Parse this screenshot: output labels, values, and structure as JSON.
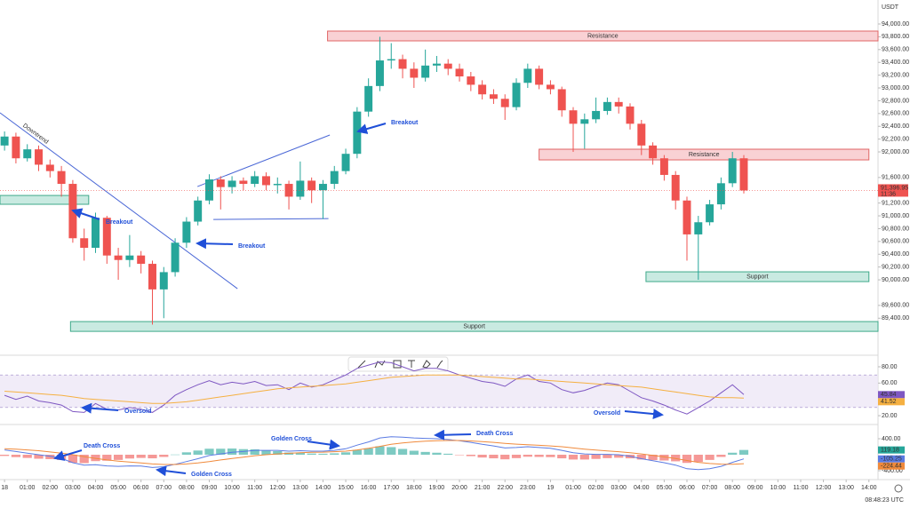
{
  "chart_data": {
    "type": "candlestick",
    "currency": "USDT",
    "clock": "08:48:23 UTC",
    "countdown": "11:36",
    "last_close": {
      "value": 91396.95,
      "label": "91,396.95"
    },
    "up_color": "#26a69a",
    "down_color": "#ef5350",
    "x": [
      0,
      0.5,
      1,
      1.5,
      2,
      2.5,
      3,
      3.5,
      4,
      4.5,
      5,
      5.5,
      6,
      6.5,
      7,
      7.5,
      8,
      8.5,
      9,
      9.5,
      10,
      10.5,
      11,
      11.5,
      12,
      12.5,
      13,
      13.5,
      14,
      14.5,
      15,
      15.5,
      16,
      16.5,
      17,
      17.5,
      18,
      18.5,
      19,
      19.5,
      20,
      20.5,
      21,
      21.5,
      22,
      22.5,
      23,
      23.5,
      24,
      24.5,
      25,
      25.5,
      26,
      26.5,
      27,
      27.5,
      28,
      28.5,
      29,
      29.5,
      30,
      30.5,
      31,
      31.5,
      32,
      32.5
    ],
    "xlim": [
      -0.2,
      38.4
    ],
    "xticks": [
      {
        "value": 0,
        "label": "18"
      },
      {
        "value": 1,
        "label": "01:00"
      },
      {
        "value": 2,
        "label": "02:00"
      },
      {
        "value": 3,
        "label": "03:00"
      },
      {
        "value": 4,
        "label": "04:00"
      },
      {
        "value": 5,
        "label": "05:00"
      },
      {
        "value": 6,
        "label": "06:00"
      },
      {
        "value": 7,
        "label": "07:00"
      },
      {
        "value": 8,
        "label": "08:00"
      },
      {
        "value": 9,
        "label": "09:00"
      },
      {
        "value": 10,
        "label": "10:00"
      },
      {
        "value": 11,
        "label": "11:00"
      },
      {
        "value": 12,
        "label": "12:00"
      },
      {
        "value": 13,
        "label": "13:00"
      },
      {
        "value": 14,
        "label": "14:00"
      },
      {
        "value": 15,
        "label": "15:00"
      },
      {
        "value": 16,
        "label": "16:00"
      },
      {
        "value": 17,
        "label": "17:00"
      },
      {
        "value": 18,
        "label": "18:00"
      },
      {
        "value": 19,
        "label": "19:00"
      },
      {
        "value": 20,
        "label": "20:00"
      },
      {
        "value": 21,
        "label": "21:00"
      },
      {
        "value": 22,
        "label": "22:00"
      },
      {
        "value": 23,
        "label": "23:00"
      },
      {
        "value": 24,
        "label": "19"
      },
      {
        "value": 25,
        "label": "01:00"
      },
      {
        "value": 26,
        "label": "02:00"
      },
      {
        "value": 27,
        "label": "03:00"
      },
      {
        "value": 28,
        "label": "04:00"
      },
      {
        "value": 29,
        "label": "05:00"
      },
      {
        "value": 30,
        "label": "06:00"
      },
      {
        "value": 31,
        "label": "07:00"
      },
      {
        "value": 32,
        "label": "08:00"
      },
      {
        "value": 33,
        "label": "09:00"
      },
      {
        "value": 34,
        "label": "10:00"
      },
      {
        "value": 35,
        "label": "11:00"
      },
      {
        "value": 36,
        "label": "12:00"
      },
      {
        "value": 37,
        "label": "13:00"
      },
      {
        "value": 38,
        "label": "14:00"
      }
    ],
    "ylim": [
      88890,
      94125
    ],
    "yticks": [
      {
        "value": 94000,
        "label": "94,000.00"
      },
      {
        "value": 93800,
        "label": "93,800.00"
      },
      {
        "value": 93600,
        "label": "93,600.00"
      },
      {
        "value": 93400,
        "label": "93,400.00"
      },
      {
        "value": 93200,
        "label": "93,200.00"
      },
      {
        "value": 93000,
        "label": "93,000.00"
      },
      {
        "value": 92800,
        "label": "92,800.00"
      },
      {
        "value": 92600,
        "label": "92,600.00"
      },
      {
        "value": 92400,
        "label": "92,400.00"
      },
      {
        "value": 92200,
        "label": "92,200.00"
      },
      {
        "value": 92000,
        "label": "92,000.00"
      },
      {
        "value": 91600,
        "label": "91,600.00"
      },
      {
        "value": 91200,
        "label": "91,200.00"
      },
      {
        "value": 91000,
        "label": "91,000.00"
      },
      {
        "value": 90800,
        "label": "90,800.00"
      },
      {
        "value": 90600,
        "label": "90,600.00"
      },
      {
        "value": 90400,
        "label": "90,400.00"
      },
      {
        "value": 90200,
        "label": "90,200.00"
      },
      {
        "value": 90000,
        "label": "90,000.00"
      },
      {
        "value": 89600,
        "label": "89,600.00"
      },
      {
        "value": 89400,
        "label": "89,400.00"
      }
    ],
    "ohlc": [
      [
        92100,
        92320,
        92020,
        92240
      ],
      [
        92240,
        92300,
        91820,
        91900
      ],
      [
        91900,
        92120,
        91850,
        92040
      ],
      [
        92040,
        92100,
        91700,
        91800
      ],
      [
        91800,
        91880,
        91600,
        91700
      ],
      [
        91700,
        91780,
        91300,
        91500
      ],
      [
        91500,
        91560,
        90580,
        90650
      ],
      [
        90650,
        90800,
        90300,
        90500
      ],
      [
        90500,
        91050,
        90420,
        90970
      ],
      [
        90970,
        91000,
        90250,
        90380
      ],
      [
        90380,
        90500,
        90000,
        90310
      ],
      [
        90310,
        90700,
        90200,
        90380
      ],
      [
        90380,
        90450,
        90100,
        90250
      ],
      [
        90250,
        90300,
        89300,
        89850
      ],
      [
        89850,
        90200,
        89400,
        90120
      ],
      [
        90120,
        90650,
        90050,
        90580
      ],
      [
        90580,
        90980,
        90500,
        90910
      ],
      [
        90910,
        91300,
        90850,
        91240
      ],
      [
        91240,
        91650,
        91180,
        91570
      ],
      [
        91570,
        91620,
        91100,
        91450
      ],
      [
        91450,
        91620,
        91350,
        91550
      ],
      [
        91550,
        91600,
        91400,
        91500
      ],
      [
        91500,
        91700,
        91450,
        91620
      ],
      [
        91620,
        91680,
        91400,
        91480
      ],
      [
        91480,
        91600,
        91350,
        91500
      ],
      [
        91500,
        91550,
        91100,
        91300
      ],
      [
        91300,
        91850,
        91250,
        91550
      ],
      [
        91550,
        91600,
        91200,
        91400
      ],
      [
        91400,
        91560,
        90950,
        91500
      ],
      [
        91500,
        91780,
        91420,
        91700
      ],
      [
        91700,
        92050,
        91650,
        91970
      ],
      [
        91970,
        92700,
        91900,
        92630
      ],
      [
        92630,
        93150,
        92550,
        93030
      ],
      [
        93030,
        93800,
        92950,
        93430
      ],
      [
        93430,
        93700,
        93300,
        93450
      ],
      [
        93450,
        93520,
        93150,
        93300
      ],
      [
        93300,
        93400,
        93000,
        93160
      ],
      [
        93160,
        93600,
        93100,
        93350
      ],
      [
        93350,
        93500,
        93250,
        93380
      ],
      [
        93380,
        93450,
        93200,
        93300
      ],
      [
        93300,
        93380,
        93100,
        93180
      ],
      [
        93180,
        93250,
        92950,
        93050
      ],
      [
        93050,
        93120,
        92820,
        92900
      ],
      [
        92900,
        92980,
        92750,
        92830
      ],
      [
        92830,
        92900,
        92500,
        92700
      ],
      [
        92700,
        93150,
        92650,
        93080
      ],
      [
        93080,
        93380,
        93000,
        93300
      ],
      [
        93300,
        93350,
        92980,
        93050
      ],
      [
        93050,
        93120,
        92900,
        92980
      ],
      [
        92980,
        93020,
        92550,
        92650
      ],
      [
        92650,
        92700,
        92000,
        92440
      ],
      [
        92440,
        92600,
        92050,
        92510
      ],
      [
        92510,
        92850,
        92450,
        92640
      ],
      [
        92640,
        92850,
        92580,
        92780
      ],
      [
        92780,
        92850,
        92600,
        92710
      ],
      [
        92710,
        92760,
        92350,
        92440
      ],
      [
        92440,
        92500,
        91950,
        92100
      ],
      [
        92100,
        92150,
        91800,
        91900
      ],
      [
        91900,
        91950,
        91550,
        91640
      ],
      [
        91640,
        91700,
        91100,
        91240
      ],
      [
        91240,
        91300,
        90300,
        90710
      ],
      [
        90710,
        91000,
        90000,
        90900
      ],
      [
        90900,
        91250,
        90850,
        91180
      ],
      [
        91180,
        91600,
        91100,
        91510
      ],
      [
        91510,
        92000,
        91450,
        91900
      ],
      [
        91900,
        91950,
        91350,
        91396.95
      ]
    ],
    "zones": [
      {
        "label": "Resistance",
        "low": 93736,
        "high": 93889,
        "x_start": 14.2,
        "x_end": 38.4,
        "color": "#f8c9cc"
      },
      {
        "label": "Resistance",
        "low": 91875,
        "high": 92042,
        "x_start": 23.5,
        "x_end": 38.0,
        "color": "#f8c9cc"
      },
      {
        "low": 91181,
        "high": 91319,
        "x_start": -0.2,
        "x_end": 3.7,
        "color": "#bfe6dc"
      },
      {
        "label": "Support",
        "low": 89972,
        "high": 90125,
        "x_start": 28.2,
        "x_end": 38.0,
        "color": "#bfe6dc"
      },
      {
        "label": "Support",
        "low": 89194,
        "high": 89347,
        "x_start": 2.9,
        "x_end": 38.4,
        "color": "#bfe6dc"
      }
    ],
    "trendlines": [
      {
        "label": "Downtrend",
        "x": [
          -0.2,
          10.24
        ],
        "y": [
          92611,
          89861
        ]
      },
      {
        "x": [
          8.48,
          14.3
        ],
        "y": [
          91458,
          92264
        ]
      },
      {
        "x": [
          9.18,
          14.24
        ],
        "y": [
          90944,
          90958
        ]
      }
    ],
    "annotations": [
      "Breakout",
      "Breakout",
      "Breakout"
    ],
    "rsi": {
      "ylim": [
        13.5,
        88.7
      ],
      "yticks": [
        {
          "value": 80,
          "label": "80.00"
        },
        {
          "value": 60,
          "label": "60.00"
        },
        {
          "value": 40,
          "label": "40.00"
        },
        {
          "value": 20,
          "label": "20.00"
        }
      ],
      "band": [
        30,
        70
      ],
      "series": [
        {
          "color": "#7e57c2",
          "values": [
            45,
            40,
            44,
            38,
            36,
            33,
            25,
            24,
            35,
            28,
            27,
            30,
            28,
            24,
            33,
            45,
            52,
            58,
            63,
            58,
            61,
            59,
            62,
            57,
            58,
            52,
            60,
            55,
            58,
            64,
            70,
            78,
            82,
            86,
            85,
            80,
            75,
            78,
            78,
            75,
            70,
            66,
            62,
            60,
            56,
            65,
            70,
            62,
            60,
            52,
            48,
            51,
            56,
            60,
            58,
            50,
            42,
            38,
            33,
            27,
            22,
            30,
            38,
            48,
            58,
            45.84
          ]
        },
        {
          "color": "#f5b041",
          "values": [
            50,
            49,
            48,
            47,
            46,
            45,
            43,
            41,
            40,
            39,
            38,
            37,
            36,
            35,
            35,
            36,
            37,
            39,
            41,
            43,
            45,
            47,
            49,
            51,
            53,
            54,
            55,
            56,
            57,
            58,
            59,
            61,
            63,
            65,
            67,
            68,
            69,
            70,
            70,
            70,
            70,
            69,
            68,
            67,
            66,
            65,
            65,
            64,
            63,
            62,
            61,
            60,
            59,
            58,
            57,
            56,
            55,
            53,
            51,
            49,
            47,
            45,
            43,
            42,
            42,
            41.52
          ]
        }
      ],
      "annotations": [
        "Oversold",
        "Oversold"
      ]
    },
    "macd": {
      "ylim": [
        -622,
        667
      ],
      "yticks": [
        {
          "value": 400,
          "label": "400.00"
        },
        {
          "value": -400,
          "label": "-400.00"
        }
      ],
      "histogram": {
        "up_color": "#26a69a",
        "down_color": "#ef5350",
        "values": [
          -30,
          -60,
          -80,
          -100,
          -110,
          -130,
          -200,
          -210,
          -160,
          -150,
          -130,
          -95,
          -80,
          -90,
          -55,
          5,
          60,
          105,
          150,
          150,
          155,
          140,
          135,
          110,
          90,
          55,
          50,
          30,
          25,
          35,
          60,
          120,
          160,
          210,
          190,
          145,
          100,
          70,
          50,
          25,
          -5,
          -35,
          -70,
          -90,
          -115,
          -85,
          -50,
          -55,
          -60,
          -90,
          -120,
          -120,
          -105,
          -85,
          -75,
          -90,
          -120,
          -135,
          -145,
          -165,
          -205,
          -180,
          -130,
          -55,
          50,
          119.18
        ]
      },
      "series": [
        {
          "color": "#5b7be3",
          "values": [
            120,
            80,
            40,
            0,
            -40,
            -90,
            -200,
            -260,
            -250,
            -280,
            -290,
            -280,
            -285,
            -320,
            -300,
            -240,
            -170,
            -100,
            -20,
            20,
            60,
            80,
            110,
            110,
            110,
            90,
            100,
            90,
            90,
            110,
            150,
            240,
            320,
            420,
            450,
            440,
            420,
            410,
            400,
            380,
            350,
            310,
            260,
            220,
            170,
            180,
            200,
            180,
            160,
            110,
            50,
            20,
            10,
            10,
            0,
            -40,
            -100,
            -150,
            -200,
            -260,
            -350,
            -370,
            -350,
            -290,
            -190,
            -105.25
          ]
        },
        {
          "color": "#f08a3c",
          "values": [
            150,
            140,
            120,
            100,
            70,
            40,
            0,
            -50,
            -90,
            -130,
            -160,
            -185,
            -205,
            -230,
            -245,
            -245,
            -230,
            -205,
            -170,
            -130,
            -95,
            -60,
            -25,
            0,
            20,
            35,
            50,
            60,
            65,
            75,
            90,
            120,
            160,
            210,
            260,
            295,
            320,
            340,
            350,
            355,
            355,
            345,
            330,
            310,
            285,
            265,
            250,
            235,
            220,
            200,
            170,
            140,
            115,
            95,
            75,
            50,
            20,
            -15,
            -55,
            -95,
            -145,
            -190,
            -220,
            -235,
            -240,
            -224.44
          ]
        }
      ],
      "annotations": [
        "Death Cross",
        "Golden Cross",
        "Death Cross",
        "Golden Cross"
      ]
    }
  }
}
